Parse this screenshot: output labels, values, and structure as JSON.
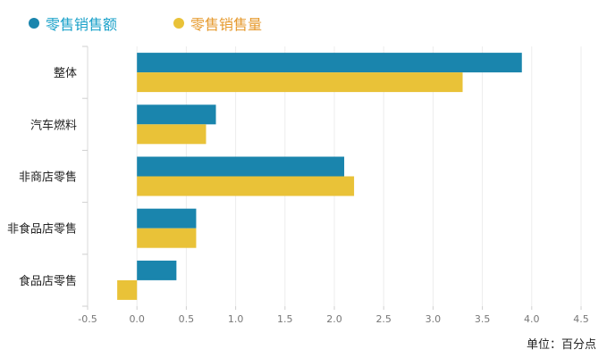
{
  "legend": [
    {
      "name": "零售销售额",
      "color": "#1A85AD",
      "text_color": "#1AA1C9"
    },
    {
      "name": "零售销售量",
      "color": "#E9C238",
      "text_color": "#E69A2E"
    }
  ],
  "unit_label": "单位：百分点",
  "chart_data": {
    "type": "bar",
    "orientation": "horizontal",
    "categories": [
      "整体",
      "汽车燃料",
      "非商店零售",
      "非食品店零售",
      "食品店零售"
    ],
    "series": [
      {
        "name": "零售销售额",
        "values": [
          3.9,
          0.8,
          2.1,
          0.6,
          0.4
        ]
      },
      {
        "name": "零售销售量",
        "values": [
          3.3,
          0.7,
          2.2,
          0.6,
          -0.2
        ]
      }
    ],
    "x_ticks": [
      "-0.5",
      "0.0",
      "0.5",
      "1.0",
      "1.5",
      "2.0",
      "2.5",
      "3.0",
      "3.5",
      "4.0",
      "4.5"
    ],
    "xlim": [
      -0.5,
      4.5
    ],
    "grid": true,
    "legend_position": "top-left"
  }
}
